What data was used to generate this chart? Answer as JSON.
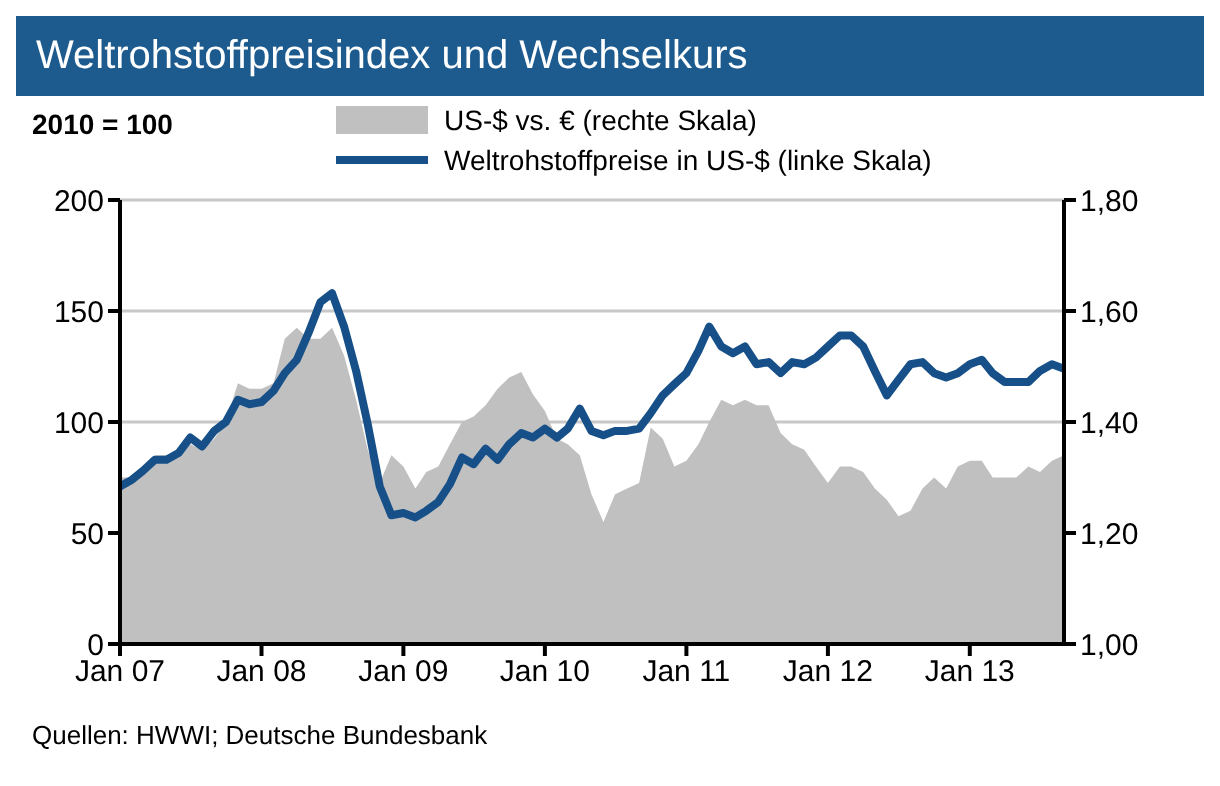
{
  "chart_data": {
    "type": "line",
    "title": "Weltrohstoffpreisindex und Wechselkurs",
    "ylabel": "2010 = 100",
    "annotations": [
      "Quellen: HWWI; Deutsche Bundesbank"
    ],
    "x": [
      "2007-01",
      "2007-02",
      "2007-03",
      "2007-04",
      "2007-05",
      "2007-06",
      "2007-07",
      "2007-08",
      "2007-09",
      "2007-10",
      "2007-11",
      "2007-12",
      "2008-01",
      "2008-02",
      "2008-03",
      "2008-04",
      "2008-05",
      "2008-06",
      "2008-07",
      "2008-08",
      "2008-09",
      "2008-10",
      "2008-11",
      "2008-12",
      "2009-01",
      "2009-02",
      "2009-03",
      "2009-04",
      "2009-05",
      "2009-06",
      "2009-07",
      "2009-08",
      "2009-09",
      "2009-10",
      "2009-11",
      "2009-12",
      "2010-01",
      "2010-02",
      "2010-03",
      "2010-04",
      "2010-05",
      "2010-06",
      "2010-07",
      "2010-08",
      "2010-09",
      "2010-10",
      "2010-11",
      "2010-12",
      "2011-01",
      "2011-02",
      "2011-03",
      "2011-04",
      "2011-05",
      "2011-06",
      "2011-07",
      "2011-08",
      "2011-09",
      "2011-10",
      "2011-11",
      "2011-12",
      "2012-01",
      "2012-02",
      "2012-03",
      "2012-04",
      "2012-05",
      "2012-06",
      "2012-07",
      "2012-08",
      "2012-09",
      "2012-10",
      "2012-11",
      "2012-12",
      "2013-01",
      "2013-02",
      "2013-03",
      "2013-04",
      "2013-05",
      "2013-06",
      "2013-07",
      "2013-08",
      "2013-09"
    ],
    "series": [
      {
        "name": "US-$ vs. € (rechte Skala)",
        "type": "area",
        "axis": "y2",
        "color": "#c0c0c0",
        "values": [
          1.3,
          1.3,
          1.31,
          1.34,
          1.34,
          1.34,
          1.36,
          1.35,
          1.37,
          1.4,
          1.47,
          1.46,
          1.46,
          1.47,
          1.55,
          1.57,
          1.55,
          1.55,
          1.57,
          1.52,
          1.44,
          1.35,
          1.29,
          1.34,
          1.32,
          1.28,
          1.31,
          1.32,
          1.36,
          1.4,
          1.41,
          1.43,
          1.46,
          1.48,
          1.49,
          1.45,
          1.42,
          1.37,
          1.36,
          1.34,
          1.27,
          1.22,
          1.27,
          1.28,
          1.29,
          1.39,
          1.37,
          1.32,
          1.33,
          1.36,
          1.4,
          1.44,
          1.43,
          1.44,
          1.43,
          1.43,
          1.38,
          1.36,
          1.35,
          1.32,
          1.29,
          1.32,
          1.32,
          1.31,
          1.28,
          1.26,
          1.23,
          1.24,
          1.28,
          1.3,
          1.28,
          1.32,
          1.33,
          1.33,
          1.3,
          1.3,
          1.3,
          1.32,
          1.31,
          1.33,
          1.34
        ]
      },
      {
        "name": "Weltrohstoffpreise in US-$ (linke Skala)",
        "color": "#175089",
        "values": [
          71,
          74,
          78,
          83,
          83,
          86,
          93,
          89,
          96,
          100,
          110,
          108,
          109,
          114,
          122,
          128,
          140,
          154,
          158,
          143,
          123,
          99,
          71,
          58,
          59,
          57,
          60,
          64,
          72,
          84,
          81,
          88,
          83,
          90,
          95,
          93,
          97,
          93,
          97,
          106,
          96,
          94,
          96,
          96,
          97,
          104,
          112,
          117,
          122,
          132,
          143,
          134,
          131,
          134,
          126,
          127,
          122,
          127,
          126,
          129,
          134,
          139,
          139,
          134,
          123,
          112,
          119,
          126,
          127,
          122,
          120,
          122,
          126,
          128,
          122,
          118,
          118,
          118,
          123,
          126,
          124
        ]
      }
    ],
    "xlim": [
      "2007-01",
      "2013-09"
    ],
    "xticks": [
      {
        "value": "2007-01",
        "label": "Jan 07"
      },
      {
        "value": "2008-01",
        "label": "Jan 08"
      },
      {
        "value": "2009-01",
        "label": "Jan 09"
      },
      {
        "value": "2010-01",
        "label": "Jan 10"
      },
      {
        "value": "2011-01",
        "label": "Jan 11"
      },
      {
        "value": "2012-01",
        "label": "Jan 12"
      },
      {
        "value": "2013-01",
        "label": "Jan 13"
      }
    ],
    "ylim": [
      0,
      200
    ],
    "yticks": [
      0,
      50,
      100,
      150,
      200
    ],
    "y2lim": [
      1.0,
      1.8
    ],
    "y2ticks": [
      {
        "value": 1.0,
        "label": "1,00"
      },
      {
        "value": 1.2,
        "label": "1,20"
      },
      {
        "value": 1.4,
        "label": "1,40"
      },
      {
        "value": 1.6,
        "label": "1,60"
      },
      {
        "value": 1.8,
        "label": "1,80"
      }
    ],
    "grid": "y",
    "legend": "top",
    "marker": "none",
    "line_style": "solid"
  }
}
